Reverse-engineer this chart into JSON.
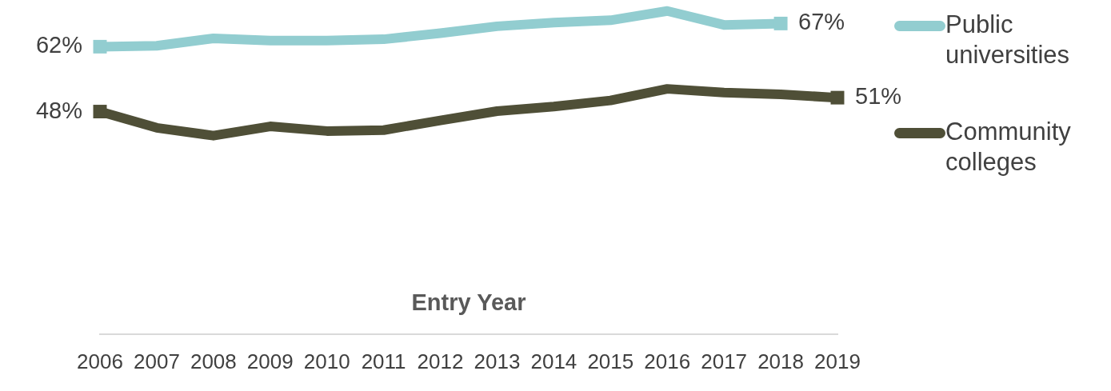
{
  "chart_data": {
    "type": "line",
    "xlabel": "Entry Year",
    "categories": [
      "2006",
      "2007",
      "2008",
      "2009",
      "2010",
      "2011",
      "2012",
      "2013",
      "2014",
      "2015",
      "2016",
      "2017",
      "2018",
      "2019"
    ],
    "series": [
      {
        "name": "Public universities",
        "color": "#92cdd0",
        "values": [
          62,
          62.2,
          63.8,
          63.3,
          63.3,
          63.6,
          64.9,
          66.4,
          67.2,
          67.7,
          69.7,
          66.7,
          67,
          null
        ],
        "value_labels": [
          "62%",
          null,
          null,
          null,
          null,
          null,
          null,
          null,
          null,
          null,
          null,
          null,
          "67%",
          null
        ]
      },
      {
        "name": "Community colleges",
        "color": "#4f4f37",
        "values": [
          48,
          44.5,
          42.8,
          44.8,
          43.8,
          44,
          46.1,
          48.1,
          49.1,
          50.4,
          52.9,
          52.1,
          51.7,
          51
        ],
        "value_labels": [
          "48%",
          null,
          null,
          null,
          null,
          null,
          null,
          null,
          null,
          null,
          null,
          null,
          null,
          "51%"
        ]
      }
    ],
    "tick_labels": "x",
    "grid": false,
    "legend": "right",
    "line_style": "solid"
  }
}
